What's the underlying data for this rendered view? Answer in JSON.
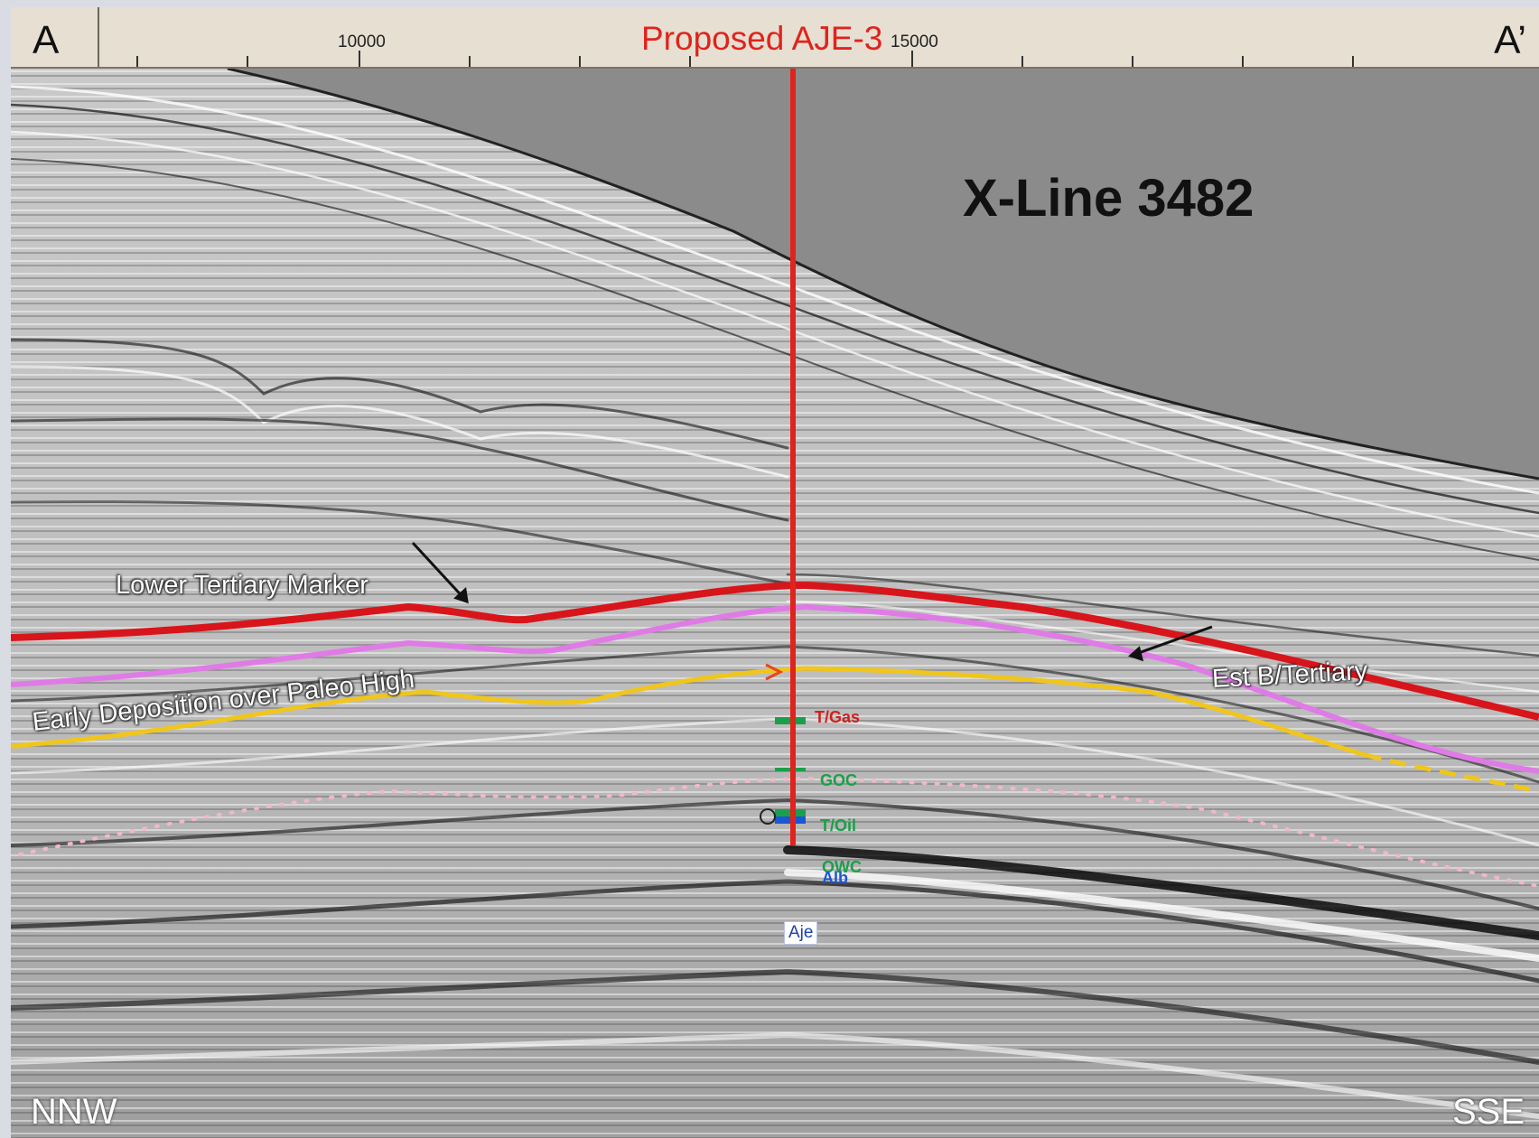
{
  "header": {
    "start_label": "A",
    "end_label": "A’",
    "tick_labels": [
      "10000",
      "15000"
    ],
    "well_title": "Proposed AJE-3"
  },
  "section": {
    "title": "X-Line 3482",
    "horizon_labels": {
      "lower_tertiary": "Lower Tertiary Marker",
      "est_base_tertiary": "Est B/Tertiary",
      "early_deposition": "Early Deposition over Paleo High"
    },
    "well_picks": [
      "T/Gas",
      "GOC",
      "T/Oil",
      "OWC",
      "Alb"
    ],
    "well_tag": "Aje",
    "directions": {
      "left": "NNW",
      "right": "SSE"
    }
  },
  "colors": {
    "seabed_fill": "#8b8b8b",
    "lower_tertiary_marker": "#d7151b",
    "early_deposition": "#e07ae6",
    "reservoir_top": "#f0c61c",
    "deep_marker": "#f2b8c6",
    "well_line": "#e0231c"
  }
}
